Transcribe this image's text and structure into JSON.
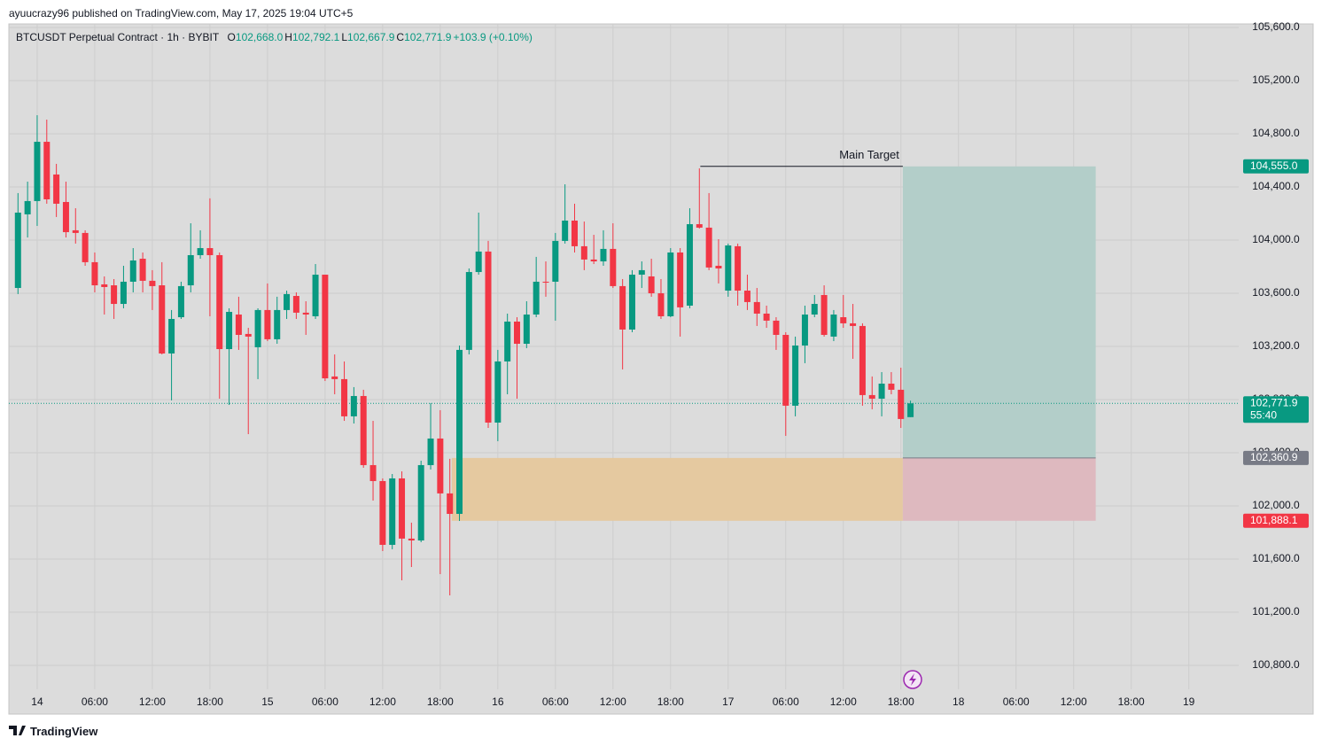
{
  "header": {
    "text": "ayuucrazy96 published on TradingView.com, May 17, 2025 19:04 UTC+5"
  },
  "footer": {
    "logo_text": "TradingView"
  },
  "chart_data": {
    "type": "candlestick",
    "symbol": "BTCUSDT Perpetual Contract · 1h · BYBIT",
    "legend": [
      {
        "key": "O",
        "value": "102,668.0"
      },
      {
        "key": "H",
        "value": "102,792.1"
      },
      {
        "key": "L",
        "value": "102,667.9"
      },
      {
        "key": "C",
        "value": "102,771.9"
      }
    ],
    "change": "+103.9 (+0.10%)",
    "x": [
      -2,
      -1,
      0,
      1,
      2,
      3,
      4,
      5,
      6,
      7,
      8,
      9,
      10,
      11,
      12,
      13,
      14,
      15,
      16,
      17,
      18,
      19,
      20,
      21,
      22,
      23,
      24,
      25,
      26,
      27,
      28,
      29,
      30,
      31,
      32,
      33,
      34,
      35,
      36,
      37,
      38,
      39,
      40,
      41,
      42,
      43,
      44,
      45,
      46,
      47,
      48,
      49,
      50,
      51,
      52,
      53,
      54,
      55,
      56,
      57,
      58,
      59,
      60,
      61,
      62,
      63,
      64,
      65,
      66,
      67,
      68,
      69,
      70,
      71,
      72,
      73,
      74,
      75,
      76,
      77,
      78,
      79,
      80,
      81,
      82,
      83,
      84,
      85,
      86,
      87,
      88,
      89,
      90,
      91
    ],
    "open": [
      103640,
      104194,
      104294,
      104740,
      104494,
      104287,
      104074,
      104054,
      103834,
      103667,
      103660,
      103520,
      103687,
      103860,
      103694,
      103660,
      103147,
      103420,
      103660,
      103887,
      103940,
      103887,
      103180,
      103440,
      103294,
      103194,
      103474,
      103254,
      103474,
      103580,
      103454,
      103427,
      103740,
      102974,
      102954,
      102674,
      102827,
      102307,
      102187,
      101707,
      102207,
      101754,
      101740,
      102307,
      102507,
      102094,
      101940,
      103174,
      103760,
      103914,
      102627,
      103087,
      103387,
      103220,
      103440,
      103687,
      103687,
      103994,
      104147,
      103954,
      103854,
      103840,
      103934,
      103654,
      103327,
      103740,
      103727,
      103600,
      103427,
      103907,
      103507,
      104120,
      104094,
      103807,
      103620,
      103954,
      103620,
      103534,
      103447,
      103394,
      103287,
      102754,
      103207,
      103440,
      103587,
      103274,
      103420,
      103374,
      103354,
      102834,
      102807,
      102920,
      102874,
      102668.0
    ],
    "high": [
      104354,
      104440,
      104940,
      104907,
      104574,
      104440,
      104240,
      104074,
      103907,
      103727,
      103707,
      103807,
      103940,
      103907,
      103774,
      103834,
      103474,
      103687,
      104127,
      104074,
      104314,
      103907,
      103487,
      103574,
      103340,
      103487,
      103674,
      103574,
      103620,
      103607,
      103540,
      103820,
      103740,
      103140,
      103087,
      102894,
      102874,
      102640,
      102207,
      102240,
      102260,
      101874,
      102340,
      102774,
      102720,
      102354,
      103207,
      103787,
      104207,
      103994,
      103174,
      103447,
      103420,
      103540,
      103874,
      103840,
      104054,
      104420,
      104274,
      104140,
      104040,
      104074,
      104127,
      103707,
      103774,
      103840,
      103860,
      103707,
      103940,
      103940,
      104240,
      104540,
      104354,
      104007,
      103974,
      103974,
      103740,
      103640,
      103507,
      103420,
      103307,
      103274,
      103507,
      103587,
      103660,
      103474,
      103587,
      103520,
      103374,
      102974,
      103007,
      103007,
      103040,
      102792.1
    ],
    "low": [
      103594,
      104020,
      104107,
      104274,
      104174,
      104020,
      103974,
      103807,
      103607,
      103440,
      103407,
      103487,
      103607,
      103607,
      103474,
      103140,
      102794,
      103407,
      103607,
      103860,
      103427,
      102807,
      102760,
      103174,
      102540,
      102954,
      103240,
      103220,
      103407,
      103407,
      103287,
      103407,
      102940,
      102840,
      102640,
      102620,
      102287,
      102040,
      101660,
      101674,
      101440,
      101540,
      101727,
      102274,
      101487,
      101327,
      101887,
      103140,
      103740,
      102587,
      102487,
      102840,
      102807,
      103187,
      103420,
      103574,
      103394,
      103974,
      103907,
      103774,
      103820,
      103807,
      103640,
      103027,
      103307,
      103640,
      103574,
      103407,
      103420,
      103274,
      103487,
      104087,
      103774,
      103674,
      103574,
      103507,
      103474,
      103354,
      103340,
      103174,
      102527,
      102674,
      103074,
      103420,
      103274,
      103240,
      103340,
      103107,
      102754,
      102727,
      102674,
      102840,
      102587,
      102667.9
    ],
    "close": [
      104207,
      104294,
      104740,
      104307,
      104274,
      104060,
      104054,
      103834,
      103660,
      103647,
      103520,
      103687,
      103847,
      103694,
      103654,
      103147,
      103407,
      103654,
      103887,
      103940,
      103887,
      103180,
      103460,
      103287,
      103274,
      103474,
      103254,
      103474,
      103594,
      103454,
      103440,
      103740,
      102960,
      102954,
      102674,
      102827,
      102307,
      102187,
      101707,
      102207,
      101754,
      101740,
      102307,
      102507,
      102094,
      101940,
      103174,
      103760,
      103914,
      102627,
      103087,
      103387,
      103220,
      103440,
      103687,
      103680,
      103994,
      104147,
      103954,
      103854,
      103840,
      103934,
      103654,
      103327,
      103740,
      103774,
      103600,
      103427,
      103907,
      103494,
      104120,
      104094,
      103794,
      103787,
      103960,
      103620,
      103534,
      103447,
      103394,
      103287,
      102754,
      103207,
      103440,
      103520,
      103287,
      103440,
      103374,
      103354,
      102834,
      102807,
      102920,
      102874,
      102654,
      102771.9
    ],
    "up_color": "#089981",
    "down_color": "#f23645",
    "xlim": [
      -2.95,
      125.2
    ],
    "xticks": [
      {
        "value": 0,
        "label": "14"
      },
      {
        "value": 6,
        "label": "06:00"
      },
      {
        "value": 12,
        "label": "12:00"
      },
      {
        "value": 18,
        "label": "18:00"
      },
      {
        "value": 24,
        "label": "15"
      },
      {
        "value": 30,
        "label": "06:00"
      },
      {
        "value": 36,
        "label": "12:00"
      },
      {
        "value": 42,
        "label": "18:00"
      },
      {
        "value": 48,
        "label": "16"
      },
      {
        "value": 54,
        "label": "06:00"
      },
      {
        "value": 60,
        "label": "12:00"
      },
      {
        "value": 66,
        "label": "18:00"
      },
      {
        "value": 72,
        "label": "17"
      },
      {
        "value": 78,
        "label": "06:00"
      },
      {
        "value": 84,
        "label": "12:00"
      },
      {
        "value": 90,
        "label": "18:00"
      },
      {
        "value": 96,
        "label": "18"
      },
      {
        "value": 102,
        "label": "06:00"
      },
      {
        "value": 108,
        "label": "12:00"
      },
      {
        "value": 114,
        "label": "18:00"
      },
      {
        "value": 120,
        "label": "19"
      }
    ],
    "ylim": [
      100620,
      105627
    ],
    "yticks": [
      {
        "value": 100800,
        "label": "100,800.0"
      },
      {
        "value": 101200,
        "label": "101,200.0"
      },
      {
        "value": 101600,
        "label": "101,600.0"
      },
      {
        "value": 102000,
        "label": "102,000.0"
      },
      {
        "value": 102400,
        "label": "102,400.0"
      },
      {
        "value": 102800,
        "label": "102,800.0"
      },
      {
        "value": 103200,
        "label": "103,200.0"
      },
      {
        "value": 103600,
        "label": "103,600.0"
      },
      {
        "value": 104000,
        "label": "104,000.0"
      },
      {
        "value": 104400,
        "label": "104,400.0"
      },
      {
        "value": 104800,
        "label": "104,800.0"
      },
      {
        "value": 105200,
        "label": "105,200.0"
      },
      {
        "value": 105600,
        "label": "105,600.0"
      }
    ],
    "grid": true,
    "last_price": {
      "value": 102771.9,
      "label": "102,771.9",
      "countdown": "55:40",
      "color": "#089981"
    },
    "position": {
      "x_start": 90.2,
      "x_end": 110.3,
      "target": {
        "value": 104555.0,
        "label": "104,555.0",
        "color": "#089981"
      },
      "entry": {
        "value": 102360.9,
        "label": "102,360.9",
        "color": "#787b86"
      },
      "stop": {
        "value": 101888.1,
        "label": "101,888.1",
        "color": "#f23645"
      },
      "profit_color": "#b3cec9",
      "loss_color": "#deb9bf"
    },
    "zone": {
      "x_start": 43.2,
      "color": "#e5c9a0"
    },
    "main_target": {
      "text": "Main Target",
      "x_start": 69.1
    }
  }
}
